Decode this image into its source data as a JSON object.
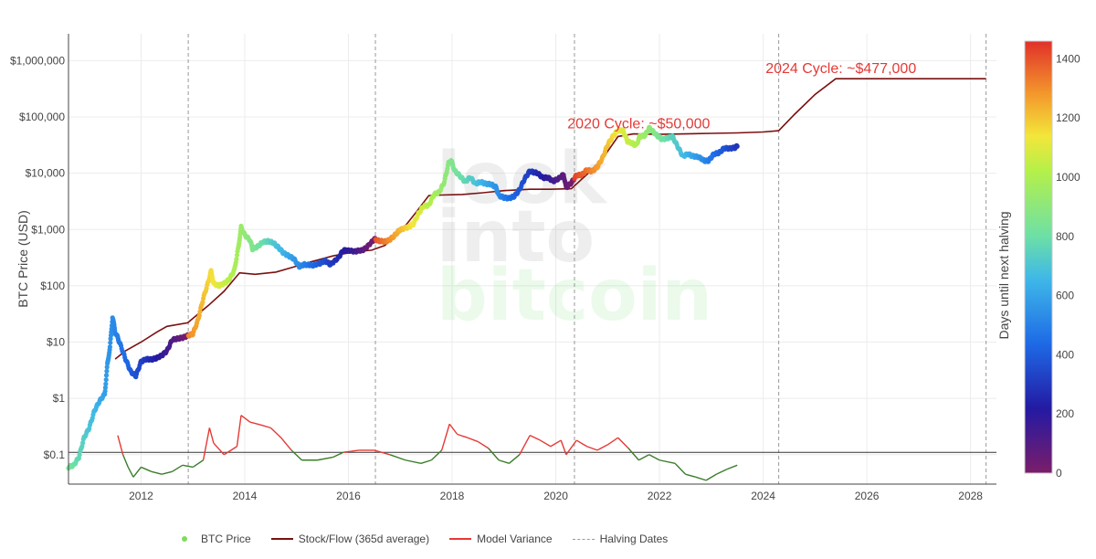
{
  "chart_data": {
    "type": "scatter",
    "xlabel": "",
    "ylabel": "BTC Price (USD)",
    "y_scale": "log",
    "xlim": [
      2010.6,
      2028.5
    ],
    "ylim": [
      0.03,
      3000000
    ],
    "x_ticks": [
      "2012",
      "2014",
      "2016",
      "2018",
      "2020",
      "2022",
      "2024",
      "2026",
      "2028"
    ],
    "y_ticks": [
      {
        "value": 0.1,
        "label": "$0.1"
      },
      {
        "value": 1,
        "label": "$1"
      },
      {
        "value": 10,
        "label": "$10"
      },
      {
        "value": 100,
        "label": "$100"
      },
      {
        "value": 1000,
        "label": "$1,000"
      },
      {
        "value": 10000,
        "label": "$10,000"
      },
      {
        "value": 100000,
        "label": "$100,000"
      },
      {
        "value": 1000000,
        "label": "$1,000,000"
      }
    ],
    "colorbar": {
      "title": "Days until next halving",
      "min": 0,
      "max": 1460,
      "ticks": [
        "0",
        "200",
        "400",
        "600",
        "800",
        "1000",
        "1200",
        "1400"
      ]
    },
    "legend": {
      "position": "bottom",
      "items": [
        "BTC Price",
        "Stock/Flow (365d average)",
        "Model Variance",
        "Halving Dates"
      ]
    },
    "watermark": [
      "look",
      "into",
      "bitcoin"
    ],
    "halving_dates": [
      2012.91,
      2016.52,
      2020.36,
      2024.3,
      2028.3
    ],
    "reference_line_y": 0.11,
    "annotations": [
      {
        "text": "2020 Cycle: ~$50,000",
        "x": 2021.6,
        "y": 50000
      },
      {
        "text": "2024 Cycle: ~$477,000",
        "x": 2025.5,
        "y": 477000
      }
    ],
    "series": [
      {
        "name": "BTC Price",
        "points": [
          [
            2010.6,
            0.06
          ],
          [
            2010.7,
            0.065
          ],
          [
            2010.8,
            0.09
          ],
          [
            2010.9,
            0.2
          ],
          [
            2011.0,
            0.3
          ],
          [
            2011.1,
            0.6
          ],
          [
            2011.2,
            0.9
          ],
          [
            2011.3,
            1.2
          ],
          [
            2011.35,
            4
          ],
          [
            2011.4,
            8
          ],
          [
            2011.45,
            28
          ],
          [
            2011.5,
            15
          ],
          [
            2011.55,
            12
          ],
          [
            2011.6,
            9
          ],
          [
            2011.7,
            5
          ],
          [
            2011.8,
            3
          ],
          [
            2011.9,
            2.5
          ],
          [
            2012.0,
            4.5
          ],
          [
            2012.1,
            5
          ],
          [
            2012.2,
            4.9
          ],
          [
            2012.3,
            5.2
          ],
          [
            2012.4,
            5.8
          ],
          [
            2012.5,
            7
          ],
          [
            2012.6,
            11
          ],
          [
            2012.7,
            11.5
          ],
          [
            2012.8,
            12
          ],
          [
            2012.9,
            13
          ],
          [
            2013.0,
            14
          ],
          [
            2013.1,
            25
          ],
          [
            2013.2,
            60
          ],
          [
            2013.3,
            120
          ],
          [
            2013.35,
            180
          ],
          [
            2013.4,
            110
          ],
          [
            2013.5,
            100
          ],
          [
            2013.6,
            110
          ],
          [
            2013.7,
            130
          ],
          [
            2013.8,
            190
          ],
          [
            2013.88,
            500
          ],
          [
            2013.93,
            1100
          ],
          [
            2014.0,
            800
          ],
          [
            2014.1,
            650
          ],
          [
            2014.15,
            450
          ],
          [
            2014.25,
            500
          ],
          [
            2014.35,
            600
          ],
          [
            2014.45,
            620
          ],
          [
            2014.55,
            580
          ],
          [
            2014.65,
            480
          ],
          [
            2014.75,
            380
          ],
          [
            2014.85,
            340
          ],
          [
            2014.95,
            300
          ],
          [
            2015.05,
            220
          ],
          [
            2015.15,
            240
          ],
          [
            2015.3,
            230
          ],
          [
            2015.45,
            250
          ],
          [
            2015.55,
            280
          ],
          [
            2015.65,
            240
          ],
          [
            2015.8,
            310
          ],
          [
            2015.9,
            430
          ],
          [
            2016.0,
            420
          ],
          [
            2016.15,
            410
          ],
          [
            2016.3,
            440
          ],
          [
            2016.45,
            600
          ],
          [
            2016.5,
            680
          ],
          [
            2016.6,
            620
          ],
          [
            2016.75,
            620
          ],
          [
            2016.85,
            720
          ],
          [
            2016.95,
            900
          ],
          [
            2017.0,
            1000
          ],
          [
            2017.15,
            1100
          ],
          [
            2017.25,
            1250
          ],
          [
            2017.35,
            1900
          ],
          [
            2017.45,
            2600
          ],
          [
            2017.55,
            2700
          ],
          [
            2017.65,
            4200
          ],
          [
            2017.75,
            4600
          ],
          [
            2017.85,
            7000
          ],
          [
            2017.93,
            15000
          ],
          [
            2017.98,
            17000
          ],
          [
            2018.05,
            11000
          ],
          [
            2018.15,
            9000
          ],
          [
            2018.25,
            7000
          ],
          [
            2018.35,
            8500
          ],
          [
            2018.45,
            6500
          ],
          [
            2018.55,
            7000
          ],
          [
            2018.65,
            6500
          ],
          [
            2018.75,
            6400
          ],
          [
            2018.85,
            5600
          ],
          [
            2018.9,
            4000
          ],
          [
            2019.0,
            3700
          ],
          [
            2019.1,
            3600
          ],
          [
            2019.2,
            3900
          ],
          [
            2019.3,
            5100
          ],
          [
            2019.4,
            8000
          ],
          [
            2019.5,
            11000
          ],
          [
            2019.55,
            10500
          ],
          [
            2019.65,
            10000
          ],
          [
            2019.75,
            8300
          ],
          [
            2019.85,
            8400
          ],
          [
            2019.95,
            7200
          ],
          [
            2020.05,
            8000
          ],
          [
            2020.15,
            9500
          ],
          [
            2020.2,
            5500
          ],
          [
            2020.3,
            6800
          ],
          [
            2020.4,
            9200
          ],
          [
            2020.5,
            9300
          ],
          [
            2020.6,
            11500
          ],
          [
            2020.7,
            10800
          ],
          [
            2020.8,
            13000
          ],
          [
            2020.9,
            18500
          ],
          [
            2021.0,
            32000
          ],
          [
            2021.1,
            45000
          ],
          [
            2021.2,
            58000
          ],
          [
            2021.3,
            57000
          ],
          [
            2021.38,
            37000
          ],
          [
            2021.48,
            34000
          ],
          [
            2021.55,
            31000
          ],
          [
            2021.62,
            45000
          ],
          [
            2021.72,
            47000
          ],
          [
            2021.8,
            63000
          ],
          [
            2021.85,
            58000
          ],
          [
            2021.95,
            47000
          ],
          [
            2022.05,
            40000
          ],
          [
            2022.15,
            42000
          ],
          [
            2022.25,
            45000
          ],
          [
            2022.35,
            30000
          ],
          [
            2022.45,
            20000
          ],
          [
            2022.55,
            22000
          ],
          [
            2022.65,
            20000
          ],
          [
            2022.75,
            19500
          ],
          [
            2022.88,
            16500
          ],
          [
            2022.95,
            16800
          ],
          [
            2023.05,
            22000
          ],
          [
            2023.15,
            23000
          ],
          [
            2023.25,
            28000
          ],
          [
            2023.35,
            27500
          ],
          [
            2023.45,
            28500
          ],
          [
            2023.5,
            30000
          ]
        ]
      },
      {
        "name": "Stock/Flow (365d average)",
        "points": [
          [
            2011.5,
            5
          ],
          [
            2011.7,
            7
          ],
          [
            2012.0,
            10
          ],
          [
            2012.3,
            15
          ],
          [
            2012.5,
            19
          ],
          [
            2012.9,
            22
          ],
          [
            2013.3,
            45
          ],
          [
            2013.6,
            80
          ],
          [
            2013.9,
            170
          ],
          [
            2014.2,
            160
          ],
          [
            2014.6,
            175
          ],
          [
            2014.9,
            210
          ],
          [
            2015.3,
            270
          ],
          [
            2015.7,
            340
          ],
          [
            2016.1,
            400
          ],
          [
            2016.45,
            430
          ],
          [
            2016.7,
            520
          ],
          [
            2017.0,
            900
          ],
          [
            2017.3,
            2000
          ],
          [
            2017.55,
            4000
          ],
          [
            2017.8,
            4100
          ],
          [
            2018.2,
            4200
          ],
          [
            2018.6,
            4500
          ],
          [
            2019.0,
            4900
          ],
          [
            2019.5,
            5200
          ],
          [
            2019.9,
            5200
          ],
          [
            2020.3,
            5300
          ],
          [
            2020.6,
            9500
          ],
          [
            2020.9,
            18000
          ],
          [
            2021.2,
            45000
          ],
          [
            2021.5,
            50000
          ],
          [
            2022.0,
            49000
          ],
          [
            2022.5,
            50000
          ],
          [
            2023.0,
            51000
          ],
          [
            2023.5,
            52000
          ],
          [
            2024.0,
            54000
          ],
          [
            2024.3,
            57000
          ],
          [
            2024.6,
            110000
          ],
          [
            2025.0,
            250000
          ],
          [
            2025.4,
            477000
          ],
          [
            2026.0,
            477000
          ],
          [
            2026.8,
            477000
          ],
          [
            2027.5,
            477000
          ],
          [
            2028.3,
            477000
          ]
        ]
      },
      {
        "name": "Model Variance",
        "points": [
          [
            2011.55,
            0.22
          ],
          [
            2011.65,
            0.1
          ],
          [
            2011.75,
            0.06
          ],
          [
            2011.85,
            0.04
          ],
          [
            2012.0,
            0.06
          ],
          [
            2012.2,
            0.05
          ],
          [
            2012.4,
            0.045
          ],
          [
            2012.6,
            0.05
          ],
          [
            2012.8,
            0.065
          ],
          [
            2013.0,
            0.06
          ],
          [
            2013.2,
            0.08
          ],
          [
            2013.32,
            0.3
          ],
          [
            2013.4,
            0.16
          ],
          [
            2013.6,
            0.1
          ],
          [
            2013.85,
            0.14
          ],
          [
            2013.93,
            0.5
          ],
          [
            2014.1,
            0.38
          ],
          [
            2014.3,
            0.34
          ],
          [
            2014.5,
            0.3
          ],
          [
            2014.7,
            0.2
          ],
          [
            2014.9,
            0.12
          ],
          [
            2015.1,
            0.08
          ],
          [
            2015.4,
            0.08
          ],
          [
            2015.7,
            0.09
          ],
          [
            2015.9,
            0.11
          ],
          [
            2016.2,
            0.12
          ],
          [
            2016.5,
            0.12
          ],
          [
            2016.8,
            0.1
          ],
          [
            2017.1,
            0.08
          ],
          [
            2017.4,
            0.07
          ],
          [
            2017.6,
            0.08
          ],
          [
            2017.8,
            0.12
          ],
          [
            2017.95,
            0.35
          ],
          [
            2018.1,
            0.23
          ],
          [
            2018.3,
            0.2
          ],
          [
            2018.5,
            0.17
          ],
          [
            2018.7,
            0.13
          ],
          [
            2018.9,
            0.08
          ],
          [
            2019.1,
            0.07
          ],
          [
            2019.3,
            0.1
          ],
          [
            2019.5,
            0.22
          ],
          [
            2019.7,
            0.18
          ],
          [
            2019.9,
            0.14
          ],
          [
            2020.1,
            0.18
          ],
          [
            2020.2,
            0.1
          ],
          [
            2020.4,
            0.18
          ],
          [
            2020.6,
            0.14
          ],
          [
            2020.8,
            0.12
          ],
          [
            2021.0,
            0.15
          ],
          [
            2021.2,
            0.2
          ],
          [
            2021.4,
            0.13
          ],
          [
            2021.6,
            0.08
          ],
          [
            2021.8,
            0.1
          ],
          [
            2022.0,
            0.08
          ],
          [
            2022.3,
            0.07
          ],
          [
            2022.5,
            0.045
          ],
          [
            2022.7,
            0.04
          ],
          [
            2022.9,
            0.035
          ],
          [
            2023.1,
            0.045
          ],
          [
            2023.3,
            0.055
          ],
          [
            2023.5,
            0.065
          ]
        ]
      }
    ]
  }
}
